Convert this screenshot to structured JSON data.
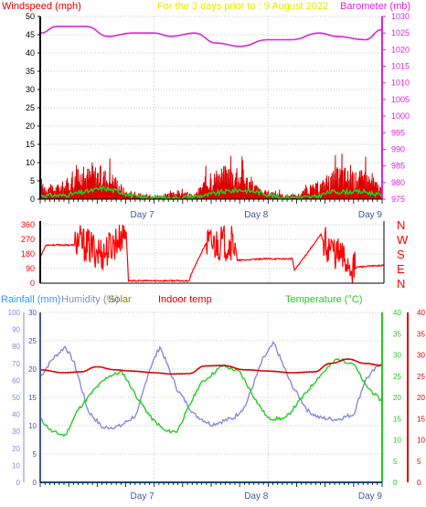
{
  "colors": {
    "wind": "#dd0000",
    "gust_fill": "#dd0000",
    "wind_avg": "#22cc22",
    "barometer": "#dd22dd",
    "title": "#e8e800",
    "humidity": "#8888dd",
    "rainfall": "#3399ff",
    "indoor": "#dd0000",
    "temperature": "#22cc22",
    "solar": "#888800",
    "direction": "#ff0000",
    "axis_blue": "#4455aa",
    "grid": "#c8c8c8"
  },
  "chart_data": [
    {
      "type": "line",
      "name": "wind-barometer",
      "title": "For the 3 days prior to : 9 August 2022",
      "left_axis_label": "Windspeed (mph)",
      "right_axis_label": "Barometer (mb)",
      "x_ticks": [
        {
          "label": "Day 7",
          "day": 1
        },
        {
          "label": "Day 8",
          "day": 2
        },
        {
          "label": "Day 9",
          "day": 3
        }
      ],
      "xlim": [
        0,
        3
      ],
      "ylim_left": [
        0,
        50
      ],
      "ylim_right": [
        975,
        1030
      ],
      "left_tick_labels": [
        "0",
        "5",
        "10",
        "15",
        "20",
        "25",
        "30",
        "35",
        "40",
        "45",
        "50"
      ],
      "right_tick_labels": [
        "975",
        "980",
        "985",
        "990",
        "995",
        "1000",
        "1005",
        "1010",
        "1015",
        "1020",
        "1025",
        "1030"
      ],
      "barometer": {
        "x": [
          0,
          0.15,
          0.4,
          0.6,
          0.8,
          1.0,
          1.15,
          1.35,
          1.55,
          1.75,
          2.0,
          2.2,
          2.45,
          2.6,
          2.85,
          3.0
        ],
        "y": [
          1025,
          1027,
          1027,
          1024,
          1025,
          1025,
          1024,
          1025,
          1022,
          1021,
          1023,
          1023,
          1025,
          1024,
          1023,
          1026
        ]
      },
      "gust": {
        "x": [
          0,
          0.1,
          0.2,
          0.35,
          0.5,
          0.65,
          0.75,
          0.9,
          1.0,
          1.1,
          1.2,
          1.35,
          1.45,
          1.55,
          1.65,
          1.75,
          1.85,
          1.95,
          2.05,
          2.15,
          2.25,
          2.35,
          2.45,
          2.55,
          2.65,
          2.75,
          2.85,
          3.0
        ],
        "y": [
          5,
          3,
          4,
          7,
          8,
          6,
          2,
          1,
          1,
          1,
          2,
          1,
          5,
          7,
          8,
          7,
          5,
          2,
          2,
          1,
          1,
          3,
          4,
          6,
          8,
          6,
          7,
          3
        ]
      },
      "average": {
        "x": [
          0,
          0.2,
          0.4,
          0.55,
          0.7,
          0.85,
          1.2,
          1.45,
          1.6,
          1.75,
          1.9,
          2.1,
          2.4,
          2.55,
          2.7,
          2.85,
          3.0
        ],
        "y": [
          1,
          1,
          2,
          3,
          2,
          0.5,
          0.3,
          1,
          2,
          2.5,
          2,
          0.5,
          0.5,
          2,
          2,
          2,
          1
        ]
      }
    },
    {
      "type": "line",
      "name": "wind-direction",
      "x_ticks": [
        {
          "label": "",
          "day": 1
        },
        {
          "label": "",
          "day": 2
        },
        {
          "label": "",
          "day": 3
        }
      ],
      "xlim": [
        0,
        3
      ],
      "ylim": [
        0,
        360
      ],
      "left_tick_labels": [
        "0",
        "90",
        "180",
        "270",
        "360"
      ],
      "right_tick_labels": [
        "N",
        "E",
        "S",
        "W",
        "N"
      ],
      "direction": {
        "x": [
          0,
          0.05,
          0.3,
          0.32,
          0.55,
          0.75,
          0.77,
          1.3,
          1.32,
          1.45,
          1.47,
          1.7,
          1.72,
          1.95,
          2.2,
          2.22,
          2.45,
          2.47,
          2.75,
          2.77,
          3.0
        ],
        "y": [
          160,
          235,
          235,
          260,
          180,
          320,
          15,
          15,
          60,
          250,
          240,
          250,
          140,
          150,
          150,
          80,
          300,
          260,
          90,
          100,
          110
        ]
      }
    },
    {
      "type": "line",
      "name": "temp-humidity",
      "series_labels": [
        "Rainfall (mm)",
        "Humidity (%)",
        "Solar",
        "Indoor temp",
        "Temperature (°C)"
      ],
      "x_ticks": [
        {
          "label": "Day 7",
          "day": 1
        },
        {
          "label": "Day 8",
          "day": 2
        },
        {
          "label": "Day 9",
          "day": 3
        }
      ],
      "xlim": [
        0,
        3
      ],
      "humidity_ylim": [
        0,
        100
      ],
      "rain_ylim": [
        0,
        30
      ],
      "temp_ylim": [
        0,
        40
      ],
      "humidity_tick_labels": [
        "0",
        "10",
        "20",
        "30",
        "40",
        "50",
        "60",
        "70",
        "80",
        "90",
        "100"
      ],
      "rain_tick_labels": [
        "0",
        "5",
        "10",
        "15",
        "20",
        "25",
        "30"
      ],
      "temp_tick_labels": [
        "0",
        "5",
        "10",
        "15",
        "20",
        "25",
        "30",
        "35",
        "40"
      ],
      "humidity": {
        "x": [
          0,
          0.1,
          0.22,
          0.3,
          0.42,
          0.55,
          0.7,
          0.85,
          0.95,
          1.05,
          1.2,
          1.35,
          1.5,
          1.6,
          1.7,
          1.8,
          1.95,
          2.05,
          2.2,
          2.35,
          2.45,
          2.6,
          2.75,
          2.85,
          3.0
        ],
        "y": [
          62,
          72,
          80,
          70,
          42,
          32,
          33,
          40,
          65,
          80,
          55,
          40,
          34,
          36,
          38,
          45,
          72,
          82,
          58,
          42,
          38,
          37,
          40,
          60,
          71
        ]
      },
      "indoor": {
        "x": [
          0,
          0.2,
          0.35,
          0.5,
          0.65,
          0.8,
          1.0,
          1.15,
          1.3,
          1.45,
          1.6,
          1.8,
          2.0,
          2.2,
          2.4,
          2.55,
          2.7,
          2.85,
          3.0
        ],
        "y": [
          26.5,
          25.8,
          26,
          27.2,
          26.5,
          26.2,
          25.8,
          25.5,
          25.6,
          27.4,
          27.5,
          26.5,
          26.2,
          25.8,
          26,
          28,
          29,
          28,
          27.5
        ]
      },
      "temperature": {
        "x": [
          0,
          0.1,
          0.22,
          0.33,
          0.48,
          0.6,
          0.72,
          0.85,
          0.98,
          1.1,
          1.2,
          1.4,
          1.6,
          1.75,
          1.9,
          2.0,
          2.15,
          2.3,
          2.45,
          2.6,
          2.75,
          2.85,
          3.0
        ],
        "y": [
          15,
          12,
          11,
          17,
          22,
          25,
          26,
          20,
          15,
          12,
          12,
          23,
          27.5,
          26,
          19,
          15,
          15,
          20,
          25,
          29,
          28,
          23,
          19
        ]
      },
      "rainfall": {
        "x": [
          0,
          3.0
        ],
        "y": [
          0,
          0
        ]
      }
    }
  ]
}
